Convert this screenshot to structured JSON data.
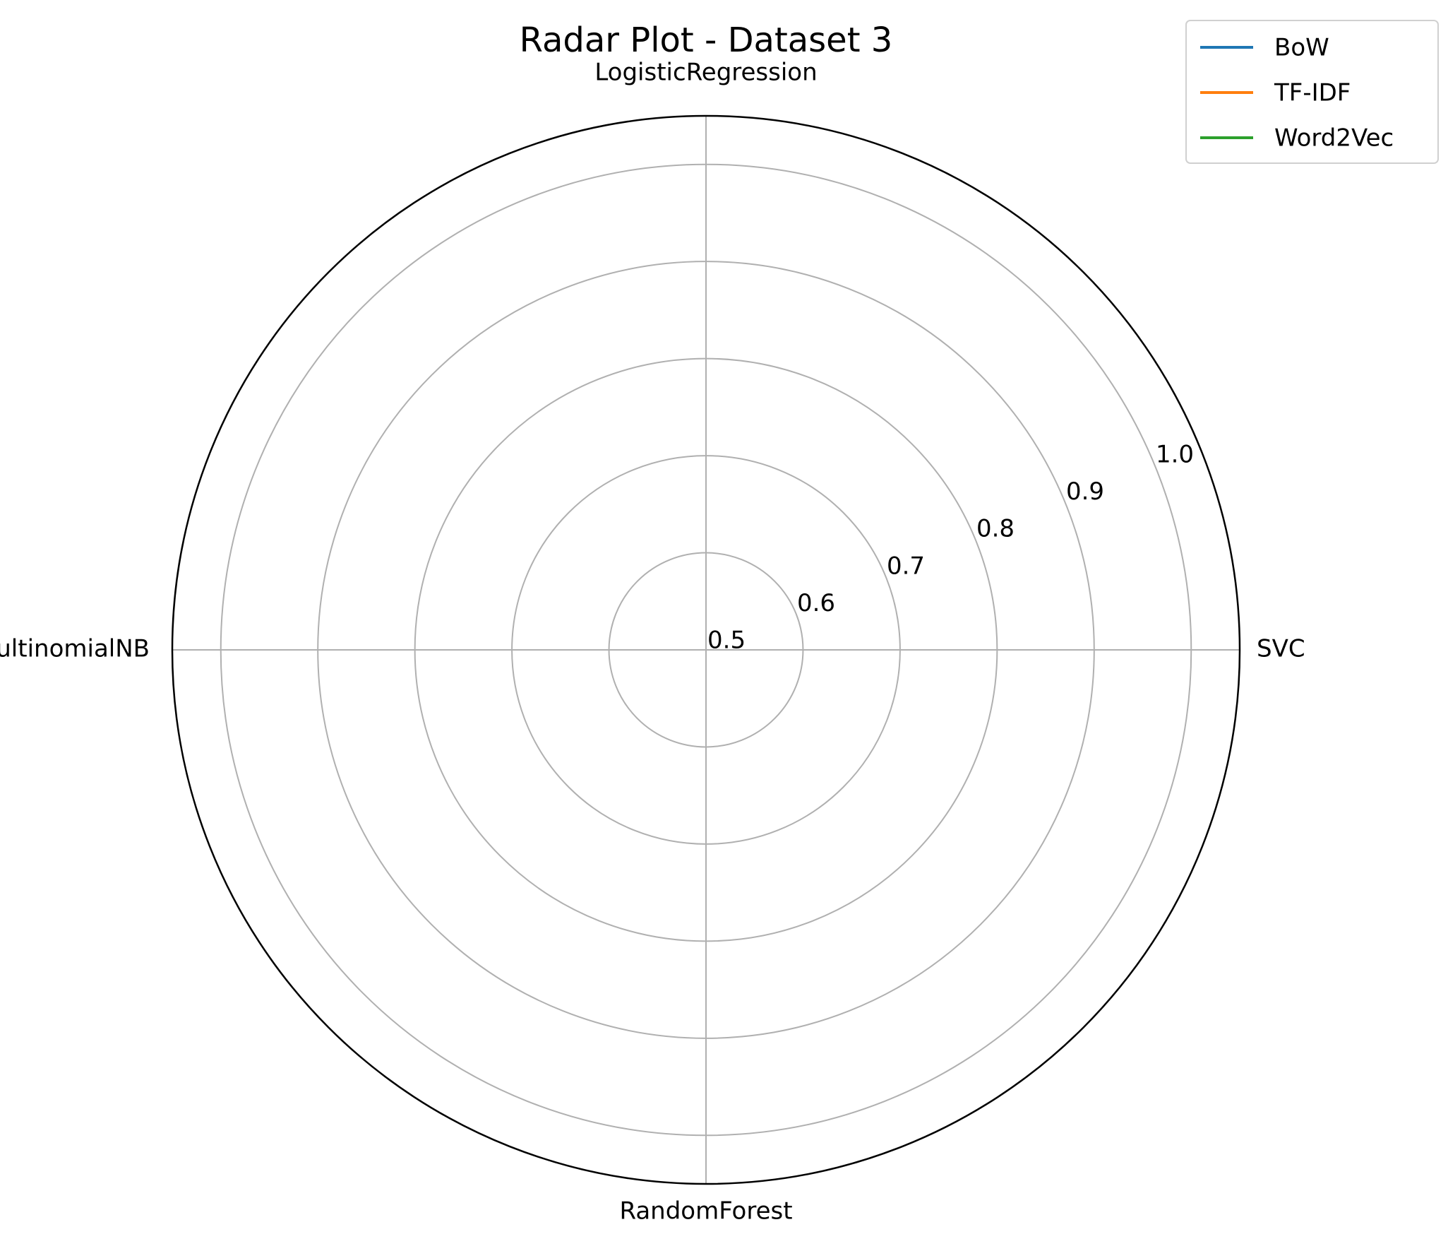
{
  "chart_data": {
    "type": "radar",
    "title": "Radar Plot - Dataset 3",
    "categories": [
      "LogisticRegression",
      "SVC",
      "RandomForest",
      "MultinomialNB"
    ],
    "series": [
      {
        "name": "BoW",
        "color": "#1f77b4",
        "values": [
          null,
          null,
          null,
          null
        ]
      },
      {
        "name": "TF-IDF",
        "color": "#ff7f0e",
        "values": [
          null,
          null,
          null,
          null
        ]
      },
      {
        "name": "Word2Vec",
        "color": "#2ca02c",
        "values": [
          null,
          null,
          null,
          null
        ]
      }
    ],
    "ylim": [
      0.5,
      1.05
    ],
    "yticks": [
      0.5,
      0.6,
      0.7,
      0.8,
      0.9,
      {
        "value": 1.0,
        "label": "1.0"
      }
    ],
    "grid": true,
    "legend": "upper right"
  }
}
